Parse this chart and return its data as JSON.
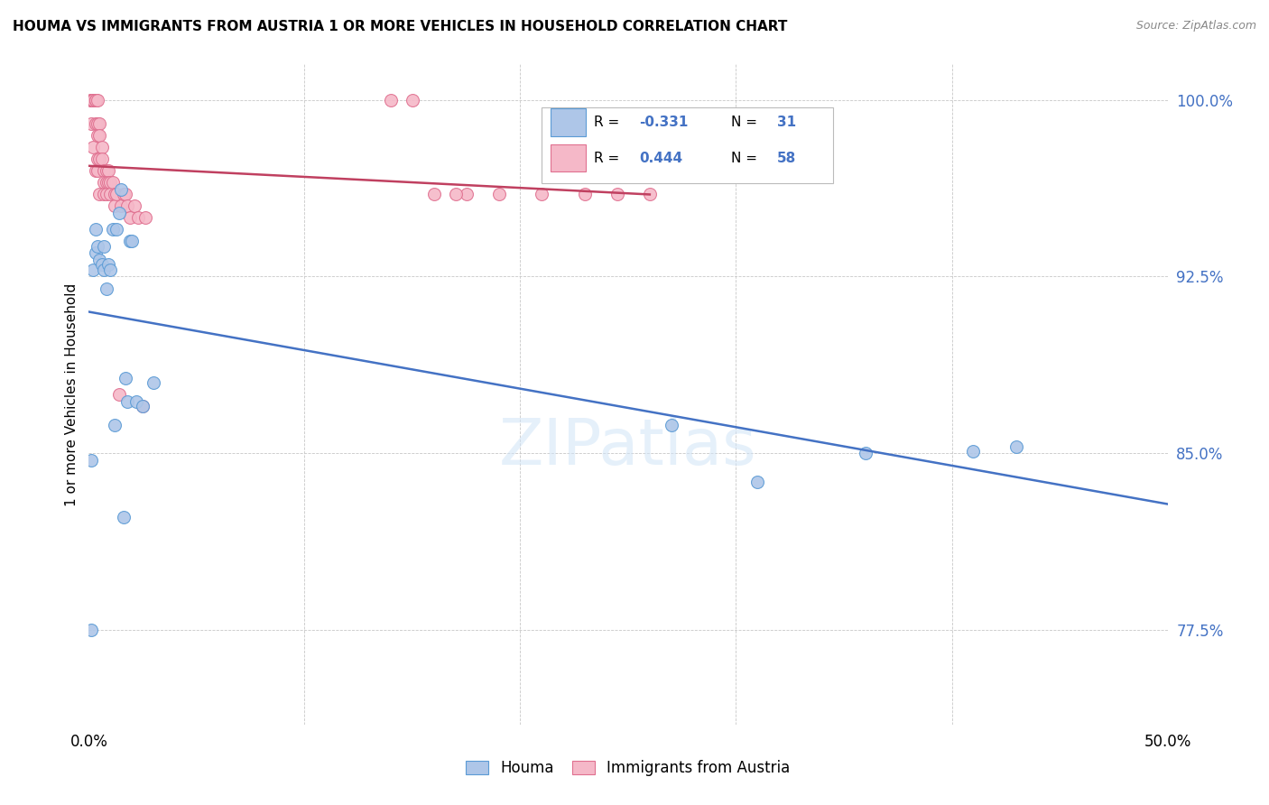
{
  "title": "HOUMA VS IMMIGRANTS FROM AUSTRIA 1 OR MORE VEHICLES IN HOUSEHOLD CORRELATION CHART",
  "source": "Source: ZipAtlas.com",
  "ylabel": "1 or more Vehicles in Household",
  "ytick_labels": [
    "77.5%",
    "85.0%",
    "92.5%",
    "100.0%"
  ],
  "ytick_values": [
    0.775,
    0.85,
    0.925,
    1.0
  ],
  "xlim": [
    0.0,
    0.5
  ],
  "ylim": [
    0.735,
    1.015
  ],
  "houma_fill": "#aec6e8",
  "houma_edge": "#5b9bd5",
  "austria_fill": "#f5b8c8",
  "austria_edge": "#e07090",
  "blue_line_color": "#4472c4",
  "red_line_color": "#c04060",
  "houma_x": [
    0.001,
    0.001,
    0.002,
    0.003,
    0.003,
    0.004,
    0.005,
    0.006,
    0.007,
    0.007,
    0.008,
    0.009,
    0.01,
    0.011,
    0.012,
    0.013,
    0.014,
    0.015,
    0.016,
    0.017,
    0.018,
    0.019,
    0.02,
    0.022,
    0.025,
    0.03,
    0.27,
    0.31,
    0.36,
    0.41,
    0.43
  ],
  "houma_y": [
    0.775,
    0.847,
    0.928,
    0.935,
    0.945,
    0.938,
    0.932,
    0.93,
    0.928,
    0.938,
    0.92,
    0.93,
    0.928,
    0.945,
    0.862,
    0.945,
    0.952,
    0.962,
    0.823,
    0.882,
    0.872,
    0.94,
    0.94,
    0.872,
    0.87,
    0.88,
    0.862,
    0.838,
    0.85,
    0.851,
    0.853
  ],
  "austria_x": [
    0.001,
    0.001,
    0.001,
    0.001,
    0.002,
    0.002,
    0.002,
    0.002,
    0.003,
    0.003,
    0.003,
    0.003,
    0.003,
    0.004,
    0.004,
    0.004,
    0.004,
    0.004,
    0.005,
    0.005,
    0.005,
    0.005,
    0.006,
    0.006,
    0.007,
    0.007,
    0.007,
    0.008,
    0.008,
    0.008,
    0.009,
    0.009,
    0.01,
    0.01,
    0.011,
    0.012,
    0.012,
    0.013,
    0.014,
    0.015,
    0.016,
    0.017,
    0.018,
    0.019,
    0.021,
    0.023,
    0.025,
    0.026,
    0.14,
    0.15,
    0.175,
    0.19,
    0.21,
    0.23,
    0.245,
    0.26,
    0.16,
    0.17
  ],
  "austria_y": [
    1.0,
    1.0,
    1.0,
    0.99,
    1.0,
    1.0,
    1.0,
    0.98,
    1.0,
    1.0,
    1.0,
    0.99,
    0.97,
    1.0,
    0.99,
    0.985,
    0.975,
    0.97,
    0.99,
    0.985,
    0.975,
    0.96,
    0.98,
    0.975,
    0.97,
    0.965,
    0.96,
    0.97,
    0.965,
    0.96,
    0.97,
    0.965,
    0.965,
    0.96,
    0.965,
    0.96,
    0.955,
    0.96,
    0.875,
    0.955,
    0.96,
    0.96,
    0.955,
    0.95,
    0.955,
    0.95,
    0.87,
    0.95,
    1.0,
    1.0,
    0.96,
    0.96,
    0.96,
    0.96,
    0.96,
    0.96,
    0.96,
    0.96
  ],
  "marker_size": 10,
  "figsize": [
    14.06,
    8.92
  ],
  "dpi": 100
}
